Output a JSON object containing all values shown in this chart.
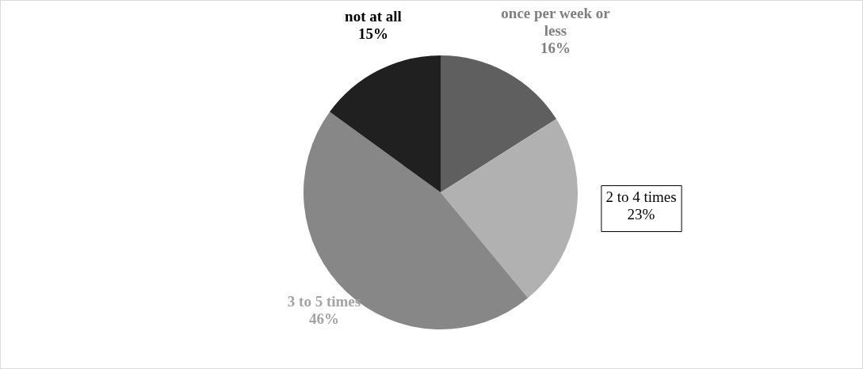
{
  "chart_data": {
    "type": "pie",
    "categories": [
      "once per week or less",
      "2 to 4 times",
      "3 to 5 times",
      "not at all"
    ],
    "values": [
      16,
      23,
      46,
      15
    ],
    "value_labels": [
      "16%",
      "23%",
      "46%",
      "15%"
    ],
    "colors": [
      "#5f5f5f",
      "#b1b1b1",
      "#878787",
      "#202020"
    ],
    "legend": false
  }
}
